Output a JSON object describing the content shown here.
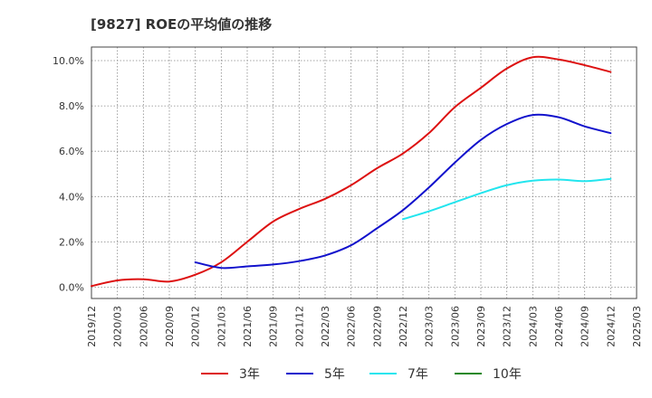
{
  "chart_data": {
    "type": "line",
    "title": "[9827]  ROEの平均値の推移",
    "xlabel": "",
    "ylabel": "",
    "ylim": [
      -0.5,
      10.6
    ],
    "y_ticks": [
      0.0,
      2.0,
      4.0,
      6.0,
      8.0,
      10.0
    ],
    "y_tick_labels": [
      "0.0%",
      "2.0%",
      "4.0%",
      "6.0%",
      "8.0%",
      "10.0%"
    ],
    "categories": [
      "2019/12",
      "2020/03",
      "2020/06",
      "2020/09",
      "2020/12",
      "2021/03",
      "2021/06",
      "2021/09",
      "2021/12",
      "2022/03",
      "2022/06",
      "2022/09",
      "2022/12",
      "2023/03",
      "2023/06",
      "2023/09",
      "2023/12",
      "2024/03",
      "2024/06",
      "2024/09",
      "2024/12",
      "2025/03"
    ],
    "grid": true,
    "legend_position": "bottom",
    "series": [
      {
        "name": "3年",
        "color": "#dd1111",
        "values": [
          0.05,
          0.3,
          0.35,
          0.25,
          0.55,
          1.1,
          2.0,
          2.9,
          3.45,
          3.9,
          4.5,
          5.25,
          5.9,
          6.8,
          7.95,
          8.8,
          9.65,
          10.15,
          10.05,
          9.8,
          9.5,
          null
        ]
      },
      {
        "name": "5年",
        "color": "#1111cc",
        "values": [
          null,
          null,
          null,
          null,
          1.1,
          0.85,
          0.92,
          1.0,
          1.15,
          1.4,
          1.85,
          2.6,
          3.4,
          4.4,
          5.5,
          6.5,
          7.2,
          7.6,
          7.5,
          7.1,
          6.8,
          null
        ]
      },
      {
        "name": "7年",
        "color": "#22e5ee",
        "values": [
          null,
          null,
          null,
          null,
          null,
          null,
          null,
          null,
          null,
          null,
          null,
          null,
          3.0,
          3.35,
          3.75,
          4.15,
          4.5,
          4.7,
          4.75,
          4.68,
          4.78,
          null
        ]
      },
      {
        "name": "10年",
        "color": "#228822",
        "values": [
          null,
          null,
          null,
          null,
          null,
          null,
          null,
          null,
          null,
          null,
          null,
          null,
          null,
          null,
          null,
          null,
          null,
          null,
          null,
          null,
          null,
          null
        ]
      }
    ]
  }
}
